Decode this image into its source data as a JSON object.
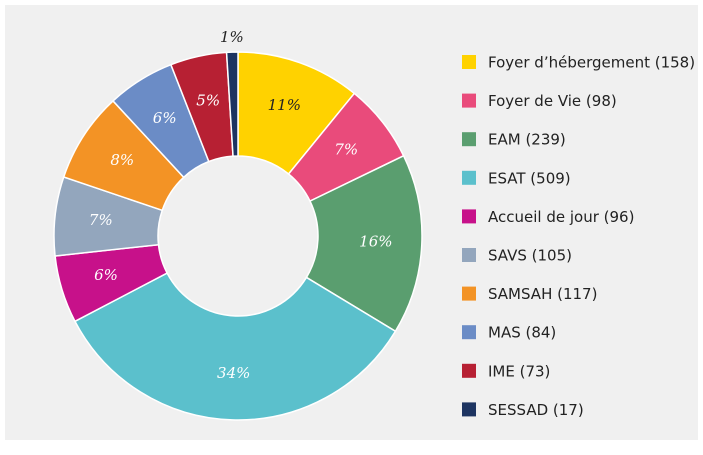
{
  "chart_data": {
    "type": "donut",
    "categories": [
      "Foyer d’hébergement (158)",
      "Foyer de Vie (98)",
      "EAM (239)",
      "ESAT (509)",
      "Accueil de jour (96)",
      "SAVS (105)",
      "SAMSAH (117)",
      "MAS (84)",
      "IME (73)",
      "SESSAD (17)"
    ],
    "values": [
      11,
      7,
      16,
      34,
      6,
      7,
      8,
      6,
      5,
      1
    ],
    "value_labels": [
      "11%",
      "7%",
      "16%",
      "34%",
      "6%",
      "7%",
      "8%",
      "6%",
      "5%",
      "1%"
    ],
    "colors": [
      "#ffd200",
      "#e94b7b",
      "#5a9e6f",
      "#5bc0cc",
      "#c7118a",
      "#93a6bd",
      "#f39325",
      "#6b8cc6",
      "#b72033",
      "#1d3461"
    ],
    "legend": "right"
  }
}
